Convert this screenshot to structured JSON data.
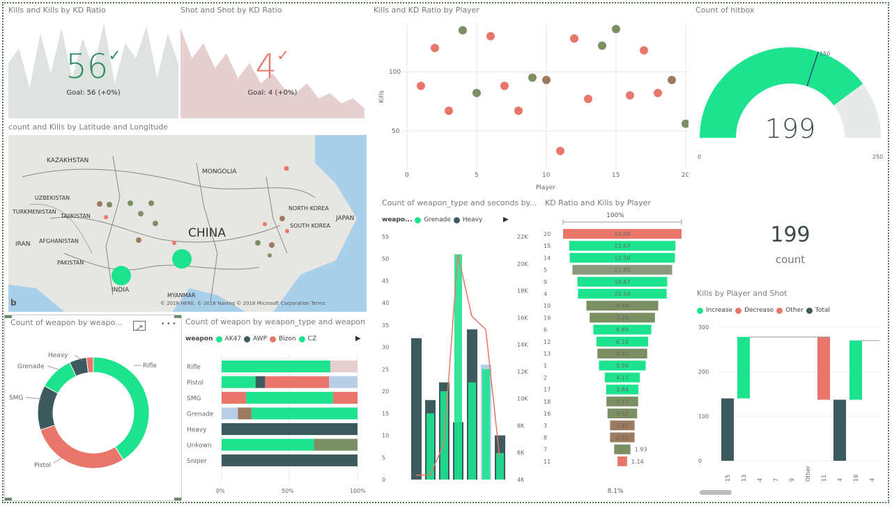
{
  "colors": {
    "green": "#1de38f",
    "dark": "#3d5a5e",
    "salmon": "#e8766a",
    "lightblue": "#b7cfe6",
    "olive": "#7b8f63",
    "brown": "#9e7a5f",
    "gray_area": "#dfe3df",
    "pink_area": "#e5cfcf"
  },
  "kpi_kills": {
    "title": "Kills and Kills by KD Ratio",
    "value": "56",
    "goal": "Goal: 56 (+0%)",
    "check_icon": "check-icon",
    "spark": [
      55,
      70,
      30,
      85,
      45,
      90,
      40,
      80,
      50,
      95,
      35,
      75,
      60,
      92,
      40,
      85,
      55
    ]
  },
  "kpi_shot": {
    "title": "Shot and Shot by KD Ratio",
    "value": "4",
    "goal": "Goal: 4 (+0%)",
    "check_icon": "check-icon",
    "spark": [
      90,
      60,
      75,
      50,
      65,
      40,
      55,
      35,
      45,
      30,
      25,
      35,
      20,
      25,
      15,
      20,
      10
    ]
  },
  "map": {
    "title": "count and Kills by Latitude and Longitude",
    "labels": [
      "KAZAKHSTAN",
      "MONGOLIA",
      "UZBEKISTAN",
      "TURKMENISTAN",
      "TAJIKISTAN",
      "IRAN",
      "AFGHANISTAN",
      "PAKISTAN",
      "INDIA",
      "CHINA",
      "NORTH KOREA",
      "SOUTH KOREA",
      "JAPAN",
      "MYANMAR"
    ],
    "copyright": "© 2018 HERE, © 2018 Navteq  © 2018 Microsoft Corporation  Terms"
  },
  "scatter": {
    "title": "Kills and KD Ratio by Player",
    "xlabel": "Player",
    "ylabel": "Kills",
    "x_ticks": [
      "0",
      "5",
      "10",
      "15",
      "20"
    ],
    "y_ticks": [
      "100",
      "50"
    ]
  },
  "gauge": {
    "title": "Count of hitbox",
    "value": "199",
    "min": "0",
    "max": "250",
    "target": "150",
    "fraction": 0.796,
    "target_fraction": 0.6
  },
  "card": {
    "value": "199",
    "label": "count"
  },
  "donut": {
    "title": "Count of weapon by weapo...",
    "labels": [
      "Rifle",
      "Pistol",
      "SMG",
      "Grenade",
      "Heavy"
    ],
    "expand_icon": "expand-icon",
    "more_icon": "more-icon",
    "more_text": "• • •"
  },
  "stacked100": {
    "title": "Count of weapon by weapon_type and weapon",
    "legend_title": "weapon",
    "legend": [
      "AK47",
      "AWP",
      "Bizon",
      "CZ"
    ],
    "rows": [
      "Rifle",
      "Pistol",
      "SMG",
      "Grenade",
      "Heavy",
      "Unkown",
      "Sniper"
    ],
    "x_ticks": [
      "0%",
      "50%",
      "100%"
    ]
  },
  "combo": {
    "title": "Count of weapon_type and seconds by...",
    "legend_title": "weapo...",
    "legend": [
      "Grenade",
      "Heavy"
    ],
    "y_left": [
      "55",
      "50",
      "45",
      "40",
      "35",
      "30",
      "25",
      "20",
      "15",
      "10",
      "5",
      "0"
    ],
    "y_right": [
      "22K",
      "20K",
      "18K",
      "16K",
      "14K",
      "12K",
      "10K",
      "8K",
      "6K",
      "4K"
    ]
  },
  "funnel": {
    "title": "KD Ratio and Kills by Player",
    "top_pct": "100%",
    "bottom_pct": "8.1%",
    "players": [
      "20",
      "15",
      "14",
      "5",
      "9",
      "4",
      "10",
      "19",
      "6",
      "12",
      "13",
      "1",
      "2",
      "17",
      "18",
      "16",
      "3",
      "8",
      "7",
      "11"
    ],
    "values": [
      "14.08",
      "12.63",
      "12.50",
      "11.85",
      "10.67",
      "10.54",
      "8.54",
      "7.75",
      "6.89",
      "6.14",
      "5.92",
      "5.56",
      "4.17",
      "3.84",
      "3.77",
      "3.52",
      "2.91",
      "2.91",
      "1.93",
      "1.14"
    ],
    "nums": [
      14.08,
      12.63,
      12.5,
      11.85,
      10.67,
      10.54,
      8.54,
      7.75,
      6.89,
      6.14,
      5.92,
      5.56,
      4.17,
      3.84,
      3.77,
      3.52,
      2.91,
      2.91,
      1.93,
      1.14
    ]
  },
  "waterfall": {
    "title": "Kills by Player and Shot",
    "legend": [
      "Increase",
      "Decrease",
      "Other",
      "Total"
    ],
    "y_ticks": [
      "300",
      "200",
      "100",
      "0"
    ],
    "x_ticks": [
      "15",
      "13",
      "4",
      "7",
      "9",
      "Other",
      "11",
      "4",
      "19",
      "4",
      "7"
    ]
  }
}
